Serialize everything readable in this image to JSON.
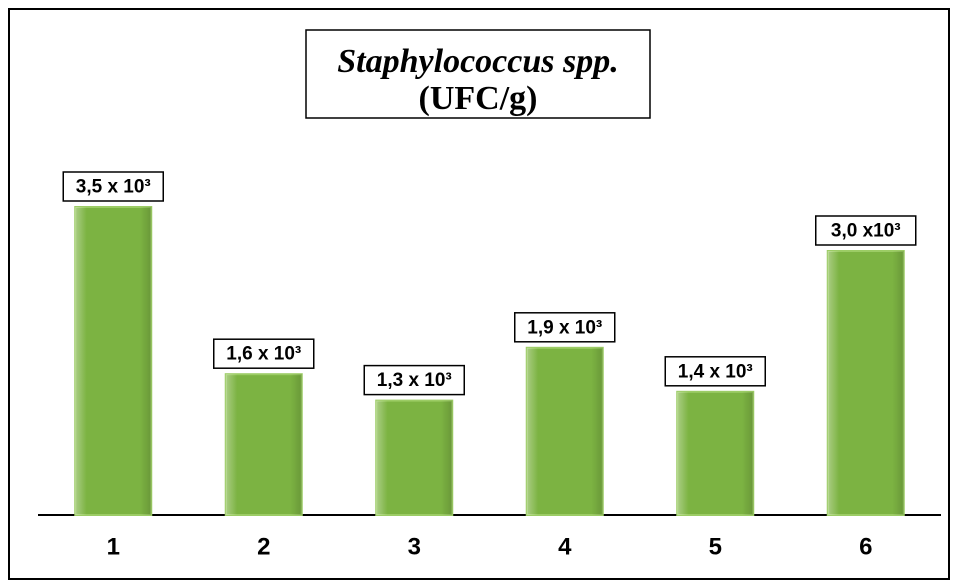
{
  "chart_data": {
    "type": "bar",
    "title": "Staphylococcus spp.",
    "subtitle": "(UFC/g)",
    "categories": [
      "1",
      "2",
      "3",
      "4",
      "5",
      "6"
    ],
    "values": [
      3500,
      1600,
      1300,
      1900,
      1400,
      3000
    ],
    "value_labels": [
      "3,5 x 10³",
      "1,6 x 10³",
      "1,3 x 10³",
      "1,9 x 10³",
      "1,4 x 10³",
      "3,0 x10³"
    ],
    "color": "#7cb342",
    "ylim": [
      0,
      4000
    ]
  }
}
